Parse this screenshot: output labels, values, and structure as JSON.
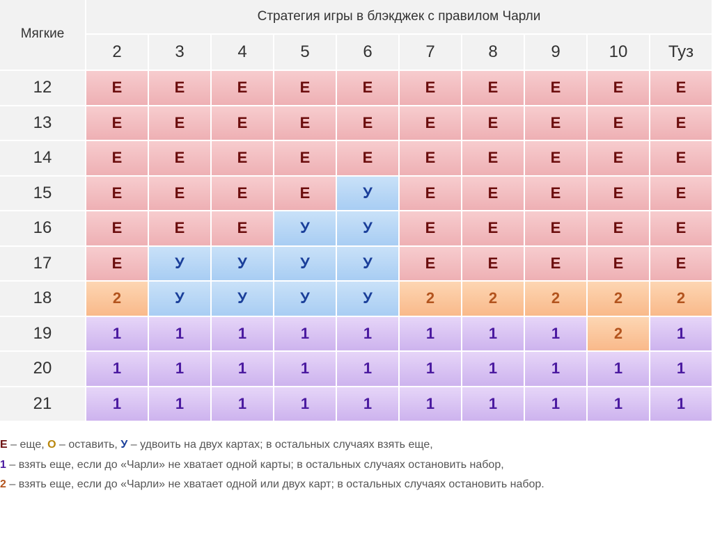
{
  "table": {
    "title": "Стратегия игры в блэкджек с правилом Чарли",
    "corner_label": "Мягкие",
    "columns": [
      "2",
      "3",
      "4",
      "5",
      "6",
      "7",
      "8",
      "9",
      "10",
      "Туз"
    ],
    "rows": [
      {
        "label": "12",
        "cells": [
          "Е",
          "Е",
          "Е",
          "Е",
          "Е",
          "Е",
          "Е",
          "Е",
          "Е",
          "Е"
        ]
      },
      {
        "label": "13",
        "cells": [
          "Е",
          "Е",
          "Е",
          "Е",
          "Е",
          "Е",
          "Е",
          "Е",
          "Е",
          "Е"
        ]
      },
      {
        "label": "14",
        "cells": [
          "Е",
          "Е",
          "Е",
          "Е",
          "Е",
          "Е",
          "Е",
          "Е",
          "Е",
          "Е"
        ]
      },
      {
        "label": "15",
        "cells": [
          "Е",
          "Е",
          "Е",
          "Е",
          "У",
          "Е",
          "Е",
          "Е",
          "Е",
          "Е"
        ]
      },
      {
        "label": "16",
        "cells": [
          "Е",
          "Е",
          "Е",
          "У",
          "У",
          "Е",
          "Е",
          "Е",
          "Е",
          "Е"
        ]
      },
      {
        "label": "17",
        "cells": [
          "Е",
          "У",
          "У",
          "У",
          "У",
          "Е",
          "Е",
          "Е",
          "Е",
          "Е"
        ]
      },
      {
        "label": "18",
        "cells": [
          "2",
          "У",
          "У",
          "У",
          "У",
          "2",
          "2",
          "2",
          "2",
          "2"
        ]
      },
      {
        "label": "19",
        "cells": [
          "1",
          "1",
          "1",
          "1",
          "1",
          "1",
          "1",
          "1",
          "2",
          "1"
        ]
      },
      {
        "label": "20",
        "cells": [
          "1",
          "1",
          "1",
          "1",
          "1",
          "1",
          "1",
          "1",
          "1",
          "1"
        ]
      },
      {
        "label": "21",
        "cells": [
          "1",
          "1",
          "1",
          "1",
          "1",
          "1",
          "1",
          "1",
          "1",
          "1"
        ]
      }
    ]
  },
  "colors": {
    "Е": "#6b0d0d",
    "У": "#1a3f9a",
    "2": "#b3541e",
    "1": "#4b1aa0",
    "О": "#b8860b"
  },
  "legend": {
    "line1": {
      "k1": "Е",
      "t1": " – еще, ",
      "k2": "О",
      "t2": " – оставить, ",
      "k3": "У",
      "t3": " – удвоить на двух картах; в остальных случаях взять еще,"
    },
    "line2": {
      "k": "1",
      "t": " – взять еще, если до «Чарли» не хватает одной карты; в остальных случаях остановить набор,"
    },
    "line3": {
      "k": "2",
      "t": " – взять еще, если до «Чарли» не хватает одной или двух карт; в остальных случаях остановить набор."
    }
  }
}
